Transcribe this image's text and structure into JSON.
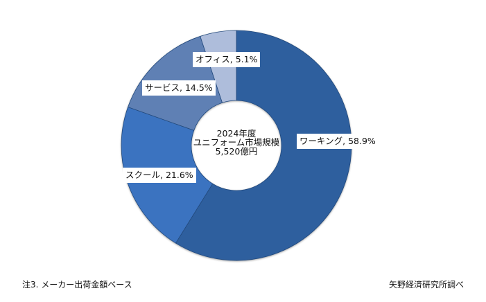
{
  "chart_data": {
    "type": "pie",
    "subtype": "donut",
    "title": "2024年度 ユニフォーム市場規模 5,520億円",
    "center_label": [
      "2024年度",
      "ユニフォーム市場規模",
      "5,520億円"
    ],
    "categories": [
      "ワーキング",
      "スクール",
      "サービス",
      "オフィス"
    ],
    "values": [
      58.9,
      21.6,
      14.5,
      5.1
    ],
    "unit": "%",
    "colors": [
      "#2f5f9e",
      "#3a73c0",
      "#5f80b4",
      "#aebddb"
    ],
    "data_labels": [
      "ワーキング, 58.9%",
      "スクール, 21.6%",
      "サービス, 14.5%",
      "オフィス, 5.1%"
    ],
    "legend": "none",
    "start_angle_deg": 0,
    "direction": "clockwise"
  },
  "labels": {
    "working": "ワーキング, 58.9%",
    "school": "スクール, 21.6%",
    "service": "サービス, 14.5%",
    "office": "オフィス, 5.1%"
  },
  "center": {
    "line1": "2024年度",
    "line2": "ユニフォーム市場規模",
    "line3": "5,520億円"
  },
  "footer": {
    "note": "注3. メーカー出荷金額ベース",
    "source": "矢野経済研究所調べ"
  }
}
